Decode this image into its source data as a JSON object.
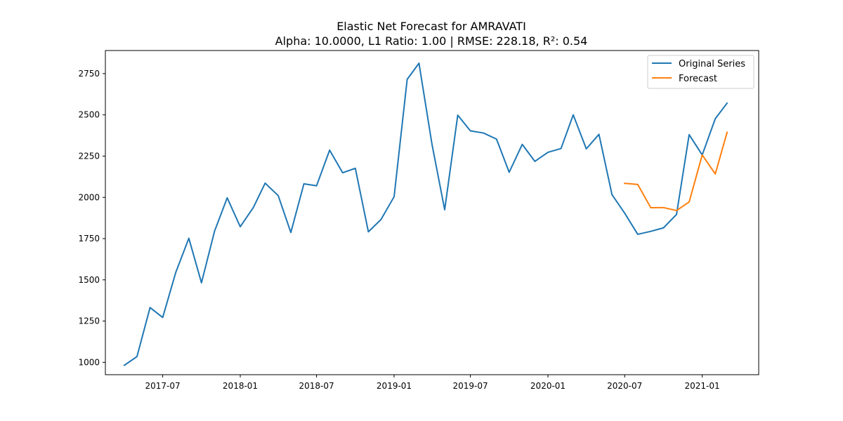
{
  "chart_data": {
    "type": "line",
    "title": "Elastic Net Forecast for AMRAVATI",
    "subtitle": "Alpha: 10.0000, L1 Ratio: 1.00 | RMSE: 228.18, R²: 0.54",
    "xlabel": "",
    "ylabel": "",
    "xlim": [
      "2017-02-15",
      "2021-05-15"
    ],
    "ylim": [
      925,
      2890
    ],
    "x_ticks": [
      "2017-07",
      "2018-01",
      "2018-07",
      "2019-01",
      "2019-07",
      "2020-01",
      "2020-07",
      "2021-01"
    ],
    "y_ticks": [
      1000,
      1250,
      1500,
      1750,
      2000,
      2250,
      2500,
      2750
    ],
    "grid": false,
    "legend_position": "top-right",
    "series": [
      {
        "name": "Original Series",
        "color": "#1f77b4",
        "x": [
          "2017-04",
          "2017-05",
          "2017-06",
          "2017-07",
          "2017-08",
          "2017-09",
          "2017-10",
          "2017-11",
          "2017-12",
          "2018-01",
          "2018-02",
          "2018-03",
          "2018-04",
          "2018-05",
          "2018-06",
          "2018-07",
          "2018-08",
          "2018-09",
          "2018-10",
          "2018-11",
          "2018-12",
          "2019-01",
          "2019-02",
          "2019-03",
          "2019-04",
          "2019-05",
          "2019-06",
          "2019-07",
          "2019-08",
          "2019-09",
          "2019-10",
          "2019-11",
          "2019-12",
          "2020-01",
          "2020-02",
          "2020-03",
          "2020-04",
          "2020-05",
          "2020-06",
          "2020-07",
          "2020-08",
          "2020-09",
          "2020-10",
          "2020-11",
          "2020-12",
          "2021-01",
          "2021-02",
          "2021-03"
        ],
        "values": [
          982,
          1035,
          1332,
          1272,
          1545,
          1752,
          1482,
          1795,
          1997,
          1822,
          1938,
          2086,
          2011,
          1787,
          2082,
          2070,
          2286,
          2149,
          2176,
          1791,
          1866,
          2004,
          2715,
          2813,
          2320,
          1925,
          2498,
          2403,
          2390,
          2353,
          2152,
          2321,
          2218,
          2273,
          2296,
          2500,
          2294,
          2382,
          2016,
          1904,
          1776,
          1794,
          1815,
          1896,
          2380,
          2257,
          2477,
          2571
        ]
      },
      {
        "name": "Forecast",
        "color": "#ff7f0e",
        "x": [
          "2020-07",
          "2020-08",
          "2020-09",
          "2020-10",
          "2020-11",
          "2020-12",
          "2021-01",
          "2021-02",
          "2021-03"
        ],
        "values": [
          2085,
          2078,
          1937,
          1938,
          1920,
          1972,
          2257,
          2142,
          2394
        ]
      }
    ]
  }
}
